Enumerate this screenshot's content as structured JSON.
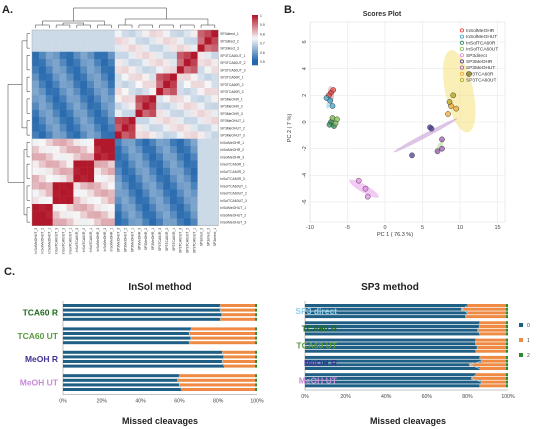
{
  "panels": {
    "a": "A.",
    "b": "B.",
    "c": "C."
  },
  "colors": {
    "mc0": "#1f5f86",
    "mc1": "#ee8a43",
    "mc2": "#2c8a2c",
    "heat_low": "#2166ac",
    "heat_mid": "#f7f7f7",
    "heat_high": "#b2182b",
    "sample_colors": [
      "#e6413f",
      "#3aa1c8",
      "#2e8b57",
      "#7fbf4a",
      "#e58ae6",
      "#4e3f9b",
      "#9b59b6",
      "#f0a830",
      "#b5a11f"
    ]
  },
  "chart_data": [
    {
      "type": "heatmap",
      "colorbar": {
        "ticks": [
          "1",
          "0.9",
          "0.8",
          "0.7",
          "0.6",
          "0.5"
        ]
      },
      "rows": [
        "SP3direct_1",
        "SP3direct_2",
        "SP3direct_3",
        "SP3TCA60UT_1",
        "SP3TCA60UT_2",
        "SP3TCA60UT_3",
        "SP3TCA60R_1",
        "SP3TCA60R_2",
        "SP3TCA60R_3",
        "SP3MeOHR_1",
        "SP3MeOHR_2",
        "SP3MeOHR_3",
        "SP3MeOHUT_1",
        "SP3MeOHUT_2",
        "SP3MeOHUT_3",
        "InSolMeOHR_1",
        "InSolMeOHR_2",
        "InSolMeOHR_3",
        "InSolTCA60R_1",
        "InSolTCA60R_2",
        "InSolTCA60R_3",
        "InSolTCA60UT_1",
        "InSolTCA60UT_2",
        "InSolTCA60UT_3",
        "InSolMeOHUT_1",
        "InSolMeOHUT_2",
        "InSolMeOHUT_3"
      ],
      "cols": [
        "InSolMeOHUT_3",
        "InSolMeOHUT_2",
        "InSolMeOHUT_1",
        "InSolTCA60UT_3",
        "InSolTCA60UT_2",
        "InSolTCA60UT_1",
        "InSolTCA60R_3",
        "InSolTCA60R_2",
        "InSolTCA60R_1",
        "InSolMeOHR_3",
        "InSolMeOHR_2",
        "InSolMeOHR_1",
        "SP3MeOHUT_3",
        "SP3MeOHUT_2",
        "SP3MeOHUT_1",
        "SP3MeOHR_3",
        "SP3MeOHR_2",
        "SP3MeOHR_1",
        "SP3TCA60R_3",
        "SP3TCA60R_2",
        "SP3TCA60R_1",
        "SP3TCA60UT_3",
        "SP3TCA60UT_2",
        "SP3TCA60UT_1",
        "SP3direct_3",
        "SP3direct_2",
        "SP3direct_1"
      ]
    },
    {
      "type": "scatter",
      "title": "Scores Plot",
      "xlabel": "PC 1 ( 76.3 %)",
      "ylabel": "PC 2 ( 7 %)",
      "xlim": [
        -10,
        16
      ],
      "ylim": [
        -7.5,
        7.5
      ],
      "xticks": [
        -10,
        -5,
        0,
        5,
        10,
        15
      ],
      "yticks": [
        -6,
        -4,
        -2,
        0,
        2,
        4,
        6
      ],
      "grid": true,
      "legend": [
        "InSolMeOHR",
        "InSolMeOHUT",
        "InSolTCA60R",
        "InSolTCA60UT",
        "SP3direct",
        "SP3MeOHR",
        "SP3MeOHUT",
        "SP3TCA60R",
        "SP3TCA60UT"
      ],
      "points": [
        {
          "g": 0,
          "x": -7.2,
          "y": 2.2
        },
        {
          "g": 0,
          "x": -6.9,
          "y": 2.4
        },
        {
          "g": 0,
          "x": -7.5,
          "y": 2.0
        },
        {
          "g": 1,
          "x": -7.8,
          "y": 1.8
        },
        {
          "g": 1,
          "x": -7.3,
          "y": 1.6
        },
        {
          "g": 1,
          "x": -7.0,
          "y": 1.2
        },
        {
          "g": 2,
          "x": -7.2,
          "y": 0.0
        },
        {
          "g": 2,
          "x": -6.8,
          "y": -0.3
        },
        {
          "g": 2,
          "x": -7.4,
          "y": -0.2
        },
        {
          "g": 3,
          "x": -6.6,
          "y": -0.1
        },
        {
          "g": 3,
          "x": -7.0,
          "y": 0.3
        },
        {
          "g": 3,
          "x": -6.4,
          "y": 0.2
        },
        {
          "g": 4,
          "x": -3.5,
          "y": -4.4
        },
        {
          "g": 4,
          "x": -2.6,
          "y": -5.0
        },
        {
          "g": 4,
          "x": -2.3,
          "y": -5.6
        },
        {
          "g": 5,
          "x": 3.6,
          "y": -2.5
        },
        {
          "g": 5,
          "x": 6.0,
          "y": -0.4
        },
        {
          "g": 5,
          "x": 6.2,
          "y": -0.5
        },
        {
          "g": 6,
          "x": 7.6,
          "y": -1.3
        },
        {
          "g": 6,
          "x": 7.0,
          "y": -2.2
        },
        {
          "g": 6,
          "x": 7.6,
          "y": -2.0
        },
        {
          "g": 7,
          "x": 8.8,
          "y": 1.2
        },
        {
          "g": 7,
          "x": 9.5,
          "y": 1.0
        },
        {
          "g": 7,
          "x": 8.4,
          "y": 0.6
        },
        {
          "g": 8,
          "x": 11.2,
          "y": 3.6
        },
        {
          "g": 8,
          "x": 9.1,
          "y": 2.0
        },
        {
          "g": 8,
          "x": 8.6,
          "y": 1.5
        }
      ]
    },
    {
      "type": "bar",
      "stacked": true,
      "orientation": "horizontal",
      "title": "InSol method",
      "xlabel": "Missed cleavages",
      "xticks": [
        "0%",
        "20%",
        "40%",
        "60%",
        "80%",
        "100%"
      ],
      "groups": [
        {
          "label": "TCA60 R",
          "color": "#1e6b1e",
          "bars": [
            [
              81,
              18,
              1
            ],
            [
              81,
              18,
              1
            ],
            [
              82,
              17,
              1
            ],
            [
              81,
              18,
              1
            ]
          ]
        },
        {
          "label": "TCA60 UT",
          "color": "#5a9a3e",
          "bars": [
            [
              66,
              33,
              1
            ],
            [
              65,
              34,
              1
            ],
            [
              66,
              33,
              1
            ],
            [
              65,
              34,
              1
            ]
          ]
        },
        {
          "label": "MeOH R",
          "color": "#3f3494",
          "bars": [
            [
              82,
              17,
              1
            ],
            [
              83,
              16,
              1
            ],
            [
              82,
              17,
              1
            ],
            [
              83,
              16,
              1
            ]
          ]
        },
        {
          "label": "MeOH UT",
          "color": "#c78bd8",
          "bars": [
            [
              60,
              39,
              1
            ],
            [
              59,
              40,
              1
            ],
            [
              60,
              39,
              1
            ],
            [
              61,
              38,
              1
            ]
          ]
        }
      ]
    },
    {
      "type": "bar",
      "stacked": true,
      "orientation": "horizontal",
      "title": "SP3 method",
      "xlabel": "Missed cleavages",
      "xticks": [
        "0%",
        "20%",
        "40%",
        "60%",
        "80%",
        "100%"
      ],
      "legend": [
        "0",
        "1",
        "2"
      ],
      "groups": [
        {
          "label": "SP3 direct",
          "color": "#8fd0ea",
          "bars": [
            [
              80,
              19,
              1
            ],
            [
              77,
              22,
              1
            ],
            [
              80,
              19,
              1
            ],
            [
              79,
              20,
              1
            ]
          ]
        },
        {
          "label": "TCA60 R",
          "color": "#1e6b1e",
          "bars": [
            [
              86,
              13,
              1
            ],
            [
              86,
              13,
              1
            ],
            [
              85,
              14,
              1
            ],
            [
              86,
              13,
              1
            ]
          ]
        },
        {
          "label": "TCA60 UT",
          "color": "#5a9a3e",
          "bars": [
            [
              84,
              15,
              1
            ],
            [
              84,
              15,
              1
            ],
            [
              85,
              14,
              1
            ],
            [
              84,
              15,
              1
            ]
          ]
        },
        {
          "label": "MeOH R",
          "color": "#3f3494",
          "bars": [
            [
              86,
              13,
              1
            ],
            [
              87,
              12,
              1
            ],
            [
              81,
              18,
              1
            ],
            [
              86,
              13,
              1
            ]
          ]
        },
        {
          "label": "MeOH UT",
          "color": "#c78bd8",
          "bars": [
            [
              84,
              15,
              1
            ],
            [
              82,
              17,
              1
            ],
            [
              87,
              12,
              1
            ],
            [
              86,
              13,
              1
            ]
          ]
        }
      ]
    }
  ]
}
